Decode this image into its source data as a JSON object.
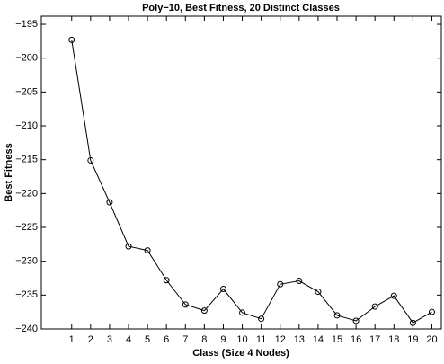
{
  "chart_data": {
    "type": "line",
    "title": "Poly−10, Best Fitness, 20 Distinct Classes",
    "x_label": "Class (Size 4 Nodes)",
    "y_label": "Best Fitness",
    "x": [
      1,
      2,
      3,
      4,
      5,
      6,
      7,
      8,
      9,
      10,
      11,
      12,
      13,
      14,
      15,
      16,
      17,
      18,
      19,
      20
    ],
    "series": [
      {
        "color": "#000000",
        "marker": "circle",
        "values": [
          -197.3,
          -215.1,
          -221.3,
          -227.8,
          -228.4,
          -232.8,
          -236.4,
          -237.3,
          -234.1,
          -237.6,
          -238.5,
          -233.4,
          -232.9,
          -234.5,
          -238.0,
          -238.8,
          -236.7,
          -235.1,
          -239.1,
          -237.5
        ]
      }
    ],
    "xlim": [
      -0.6,
      20.5
    ],
    "xticks": [
      1,
      2,
      3,
      4,
      5,
      6,
      7,
      8,
      9,
      10,
      11,
      12,
      13,
      14,
      15,
      16,
      17,
      18,
      19,
      20
    ],
    "ylim": [
      -240,
      -193.8
    ],
    "yticks": [
      {
        "value": -240,
        "label": "−240"
      },
      {
        "value": -235,
        "label": "−235"
      },
      {
        "value": -230,
        "label": "−230"
      },
      {
        "value": -225,
        "label": "−225"
      },
      {
        "value": -220,
        "label": "−220"
      },
      {
        "value": -215,
        "label": "−215"
      },
      {
        "value": -210,
        "label": "−210"
      },
      {
        "value": -205,
        "label": "−205"
      },
      {
        "value": -200,
        "label": "−200"
      },
      {
        "value": -195,
        "label": "−195"
      }
    ],
    "grid": false
  }
}
